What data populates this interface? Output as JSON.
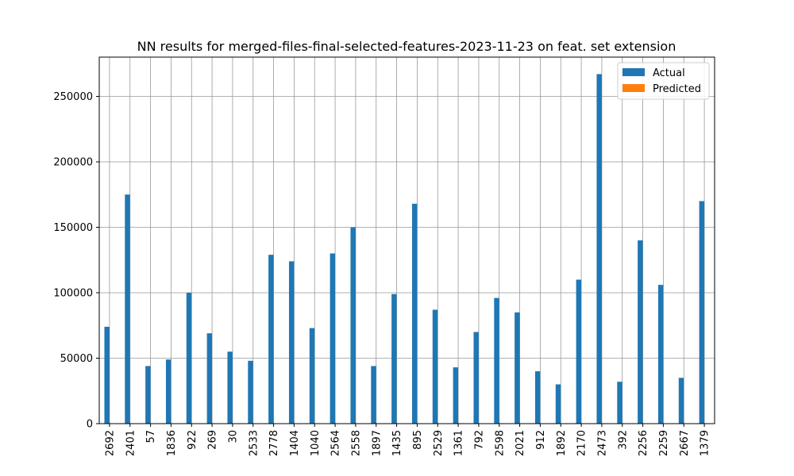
{
  "chart_data": {
    "type": "bar",
    "title": "NN results for merged-files-final-selected-features-2023-11-23 on feat. set extension",
    "xlabel": "",
    "ylabel": "",
    "ylim": [
      0,
      280000
    ],
    "yticks": [
      0,
      50000,
      100000,
      150000,
      200000,
      250000
    ],
    "grid": true,
    "legend_position": "top-right",
    "categories": [
      "2692",
      "2401",
      "57",
      "1836",
      "922",
      "269",
      "30",
      "2533",
      "2778",
      "1404",
      "1040",
      "2564",
      "2558",
      "1897",
      "1435",
      "895",
      "2529",
      "1361",
      "792",
      "2598",
      "2021",
      "912",
      "1892",
      "2170",
      "2473",
      "392",
      "2256",
      "2259",
      "2667",
      "1379"
    ],
    "series": [
      {
        "name": "Actual",
        "color": "#1f77b4",
        "values": [
          74000,
          175000,
          44000,
          49000,
          100000,
          69000,
          55000,
          48000,
          129000,
          124000,
          73000,
          130000,
          150000,
          44000,
          99000,
          168000,
          87000,
          43000,
          70000,
          96000,
          85000,
          40000,
          30000,
          110000,
          267000,
          32000,
          140000,
          106000,
          35000,
          170000
        ]
      },
      {
        "name": "Predicted",
        "color": "#ff7f0e",
        "values": [
          0,
          0,
          0,
          0,
          0,
          0,
          0,
          0,
          0,
          0,
          0,
          0,
          0,
          0,
          0,
          0,
          0,
          0,
          0,
          0,
          0,
          0,
          0,
          0,
          0,
          0,
          0,
          0,
          0,
          0
        ]
      }
    ]
  }
}
